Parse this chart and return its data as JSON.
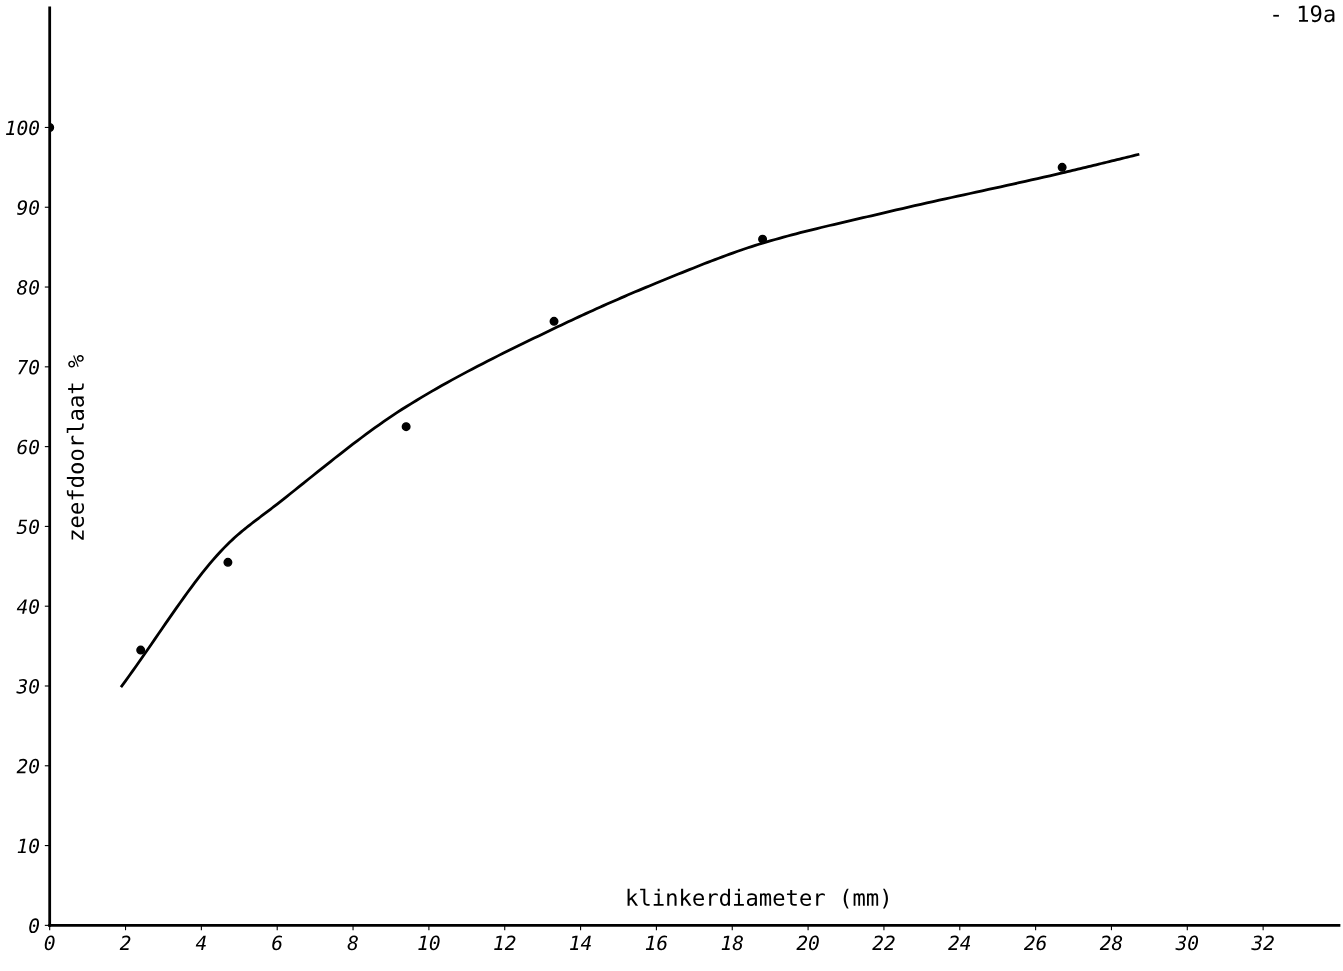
{
  "chart_data": {
    "type": "scatter",
    "xlabel": "klinkerdiameter (mm)",
    "ylabel": "zeefdoorlaat %",
    "annotations": [
      "- 19a"
    ],
    "xlim": [
      0,
      34
    ],
    "ylim": [
      0,
      115
    ],
    "xticks": [
      0,
      2,
      4,
      6,
      8,
      10,
      12,
      14,
      16,
      18,
      20,
      22,
      24,
      26,
      28,
      30,
      32
    ],
    "yticks": [
      0,
      10,
      20,
      30,
      40,
      50,
      60,
      70,
      80,
      90,
      100
    ],
    "grid": false,
    "legend": false,
    "series": [
      {
        "color": "#000000",
        "marker": "circle",
        "x": [
          0,
          2.4,
          4.7,
          9.4,
          13.3,
          18.8,
          26.7
        ],
        "values": [
          100,
          34.5,
          45.5,
          62.5,
          75.7,
          86,
          95
        ]
      },
      {
        "type": "line",
        "color": "#000000",
        "marker": "none",
        "line_style": "solid",
        "x": [
          1.9,
          4.7,
          6,
          9.4,
          13.3,
          16,
          18.8,
          22,
          26.7,
          28.7
        ],
        "values": [
          30,
          47.8,
          52.8,
          65,
          74.8,
          80.5,
          85.5,
          89.3,
          94.3,
          96.6
        ]
      }
    ]
  }
}
